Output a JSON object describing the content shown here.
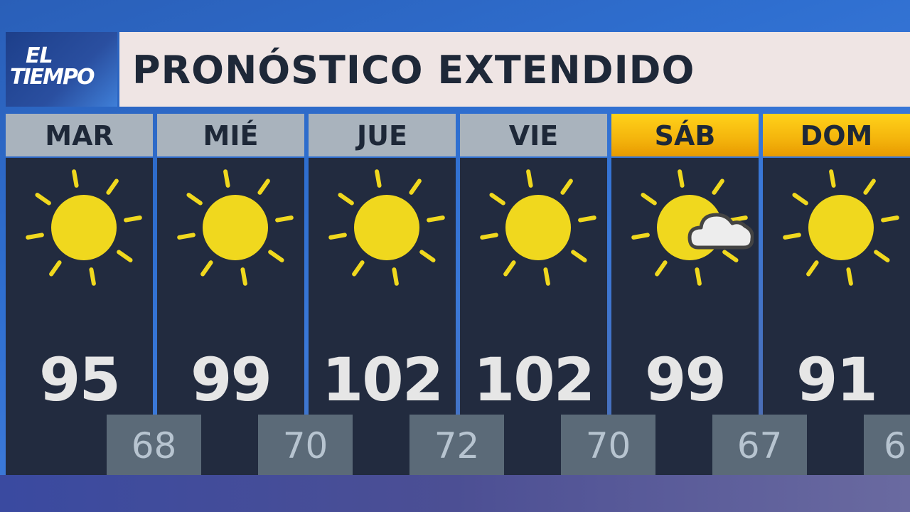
{
  "logo": {
    "line1": "EL",
    "line2": "TIEMPO"
  },
  "title": "PRONÓSTICO EXTENDIDO",
  "colors": {
    "sun": "#f0d81e",
    "header_weekday": "#a9b3bd",
    "header_weekend": "#f4b40c",
    "panel": "#222b3f",
    "low_box": "#5b6a78"
  },
  "days": [
    {
      "name": "MAR",
      "icon": "sun-icon",
      "high": "95",
      "low": "68",
      "weekend": false
    },
    {
      "name": "MIÉ",
      "icon": "sun-icon",
      "high": "99",
      "low": "70",
      "weekend": false
    },
    {
      "name": "JUE",
      "icon": "sun-icon",
      "high": "102",
      "low": "72",
      "weekend": false
    },
    {
      "name": "VIE",
      "icon": "sun-icon",
      "high": "102",
      "low": "70",
      "weekend": false
    },
    {
      "name": "SÁB",
      "icon": "partly-cloudy-icon",
      "high": "99",
      "low": "67",
      "weekend": true
    },
    {
      "name": "DOM",
      "icon": "sun-icon",
      "high": "91",
      "low": "6",
      "weekend": true
    }
  ]
}
